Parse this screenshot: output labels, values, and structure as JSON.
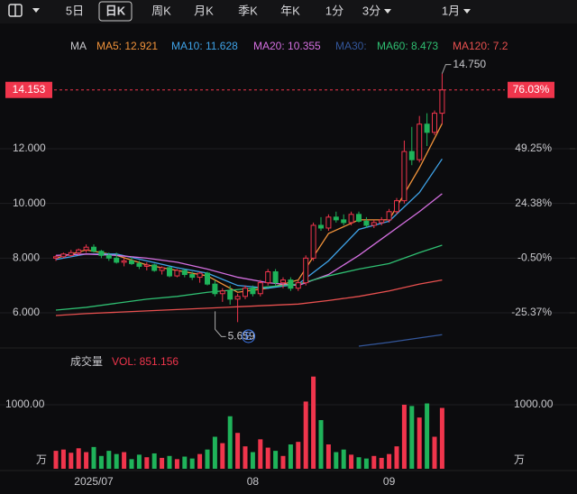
{
  "toolbar": {
    "tabs": [
      "5日",
      "日K",
      "周K",
      "月K",
      "季K",
      "年K",
      "1分",
      "3分",
      "1月"
    ],
    "selected": 1
  },
  "chart_data": [
    {
      "type": "candlestick",
      "legend_title": "MA",
      "up_color": "#f0354c",
      "down_color": "#1fb35a",
      "ylim": [
        4.747,
        15.463
      ],
      "yticks": [
        {
          "value": 6,
          "label": "6.000"
        },
        {
          "value": 8,
          "label": "8.000"
        },
        {
          "value": 10,
          "label": "10.000"
        },
        {
          "value": 12,
          "label": "12.000"
        }
      ],
      "y2lim": [
        -40.95,
        92.3
      ],
      "y2ticks": [
        {
          "value": -25.37,
          "label": "-25.37%"
        },
        {
          "value": -0.5,
          "label": "-0.50%"
        },
        {
          "value": 24.38,
          "label": "24.38%"
        },
        {
          "value": 49.25,
          "label": "49.25%"
        }
      ],
      "last_price": 14.153,
      "last_change": {
        "value": 76.03,
        "label": "76.03%"
      },
      "high_label": "14.750",
      "low_label": "5.659",
      "event_marker": "E",
      "categories": [
        null,
        null,
        null,
        null,
        null,
        "2025/07",
        null,
        null,
        null,
        null,
        null,
        null,
        null,
        null,
        null,
        null,
        null,
        null,
        null,
        null,
        null,
        null,
        null,
        null,
        null,
        null,
        "08",
        null,
        null,
        null,
        null,
        null,
        null,
        null,
        null,
        null,
        null,
        null,
        null,
        null,
        null,
        null,
        null,
        null,
        "09",
        null,
        null,
        null,
        null,
        null,
        null,
        null
      ],
      "open": [
        8.0,
        8.05,
        8.1,
        8.2,
        8.3,
        8.4,
        8.25,
        8.1,
        8.0,
        7.85,
        7.9,
        7.8,
        7.7,
        7.75,
        7.55,
        7.65,
        7.35,
        7.55,
        7.4,
        7.3,
        7.45,
        7.05,
        6.7,
        6.8,
        6.5,
        6.6,
        6.9,
        6.7,
        7.1,
        7.5,
        7.1,
        7.2,
        6.9,
        7.1,
        8.0,
        9.2,
        9.1,
        9.5,
        9.4,
        9.3,
        9.6,
        9.35,
        9.2,
        9.3,
        9.4,
        9.7,
        10.1,
        11.9,
        11.6,
        12.9,
        12.6,
        13.3
      ],
      "high": [
        8.1,
        8.2,
        8.3,
        8.35,
        8.5,
        8.5,
        8.3,
        8.2,
        8.2,
        8.0,
        8.05,
        7.9,
        7.85,
        7.8,
        7.7,
        7.7,
        7.6,
        7.6,
        7.5,
        7.5,
        7.5,
        7.2,
        6.9,
        7.0,
        6.7,
        7.0,
        7.0,
        7.2,
        7.6,
        7.6,
        7.3,
        7.3,
        7.2,
        8.1,
        9.3,
        9.5,
        9.6,
        9.7,
        9.6,
        9.7,
        9.7,
        9.5,
        9.4,
        9.5,
        9.8,
        10.2,
        12.3,
        12.8,
        13.2,
        13.3,
        13.4,
        14.75
      ],
      "low": [
        7.9,
        8.0,
        8.05,
        8.1,
        8.2,
        8.2,
        8.0,
        7.9,
        7.8,
        7.7,
        7.75,
        7.6,
        7.55,
        7.5,
        7.4,
        7.3,
        7.3,
        7.3,
        7.2,
        7.1,
        7.0,
        6.6,
        6.4,
        6.3,
        5.659,
        6.5,
        6.6,
        6.6,
        7.0,
        7.0,
        6.9,
        6.8,
        6.8,
        7.0,
        7.9,
        9.0,
        9.0,
        9.3,
        9.2,
        9.2,
        9.3,
        9.1,
        9.1,
        9.2,
        9.3,
        9.6,
        10.0,
        11.4,
        11.5,
        12.1,
        12.5,
        12.9
      ],
      "close": [
        8.05,
        8.15,
        8.2,
        8.3,
        8.4,
        8.25,
        8.1,
        8.0,
        7.85,
        7.9,
        7.8,
        7.7,
        7.75,
        7.55,
        7.65,
        7.35,
        7.55,
        7.4,
        7.3,
        7.45,
        7.05,
        6.7,
        6.8,
        6.5,
        6.6,
        6.9,
        6.7,
        7.1,
        7.5,
        7.1,
        7.2,
        6.9,
        7.1,
        8.0,
        9.2,
        9.1,
        9.5,
        9.4,
        9.3,
        9.6,
        9.35,
        9.2,
        9.3,
        9.4,
        9.7,
        10.1,
        11.9,
        11.6,
        12.9,
        12.6,
        13.3,
        14.153
      ],
      "series": [
        {
          "name": "MA5",
          "legend_label": "MA5: 12.921",
          "color": "#f0923a",
          "x": [
            0,
            4,
            8,
            12,
            16,
            20,
            24,
            28,
            32,
            36,
            40,
            44,
            48,
            51
          ],
          "values": [
            8.0,
            8.3,
            8.1,
            7.75,
            7.55,
            7.35,
            6.75,
            6.9,
            7.2,
            8.9,
            9.4,
            9.4,
            11.3,
            12.921
          ]
        },
        {
          "name": "MA10",
          "legend_label": "MA10: 11.628",
          "color": "#3fa3e8",
          "x": [
            0,
            4,
            8,
            12,
            16,
            20,
            24,
            28,
            32,
            36,
            40,
            44,
            48,
            51
          ],
          "values": [
            7.95,
            8.15,
            8.15,
            7.9,
            7.65,
            7.45,
            7.0,
            6.9,
            7.05,
            7.9,
            9.05,
            9.35,
            10.4,
            11.628
          ]
        },
        {
          "name": "MA20",
          "legend_label": "MA20: 10.355",
          "color": "#d46fe0",
          "x": [
            0,
            4,
            8,
            12,
            16,
            20,
            24,
            28,
            32,
            36,
            40,
            44,
            48,
            51
          ],
          "values": [
            8.1,
            8.15,
            8.1,
            8.0,
            7.85,
            7.6,
            7.3,
            7.1,
            7.0,
            7.4,
            8.1,
            8.9,
            9.7,
            10.355
          ]
        },
        {
          "name": "MA30",
          "legend_label": "MA30:",
          "color": "#33569a",
          "x": [
            40,
            44,
            48,
            51
          ],
          "values": [
            4.78,
            4.92,
            5.08,
            5.2
          ]
        },
        {
          "name": "MA60",
          "legend_label": "MA60: 8.473",
          "color": "#2fbf72",
          "x": [
            0,
            4,
            8,
            12,
            16,
            20,
            24,
            28,
            32,
            36,
            40,
            44,
            48,
            51
          ],
          "values": [
            6.1,
            6.2,
            6.35,
            6.5,
            6.6,
            6.75,
            6.85,
            6.95,
            7.05,
            7.35,
            7.6,
            7.8,
            8.2,
            8.473
          ]
        },
        {
          "name": "MA120",
          "legend_label": "MA120: 7.2",
          "color": "#e8504f",
          "x": [
            0,
            4,
            8,
            12,
            16,
            20,
            24,
            28,
            32,
            36,
            40,
            44,
            48,
            51
          ],
          "values": [
            5.9,
            5.97,
            6.02,
            6.07,
            6.12,
            6.17,
            6.22,
            6.27,
            6.32,
            6.45,
            6.6,
            6.8,
            7.05,
            7.2
          ]
        }
      ]
    },
    {
      "type": "bar",
      "title": "成交量",
      "legend_label": "VOL: 851.156",
      "unit": "万",
      "ylim": [
        0,
        1408
      ],
      "yticks": [
        {
          "value": 1000,
          "label": "1000.00"
        }
      ],
      "values": [
        280,
        300,
        250,
        320,
        260,
        340,
        200,
        280,
        230,
        260,
        150,
        220,
        180,
        240,
        170,
        200,
        150,
        190,
        160,
        230,
        300,
        500,
        400,
        820,
        560,
        350,
        260,
        460,
        330,
        280,
        200,
        380,
        420,
        1050,
        1440,
        760,
        380,
        260,
        300,
        220,
        180,
        160,
        200,
        170,
        230,
        350,
        1000,
        980,
        800,
        1020,
        500,
        950
      ]
    }
  ]
}
